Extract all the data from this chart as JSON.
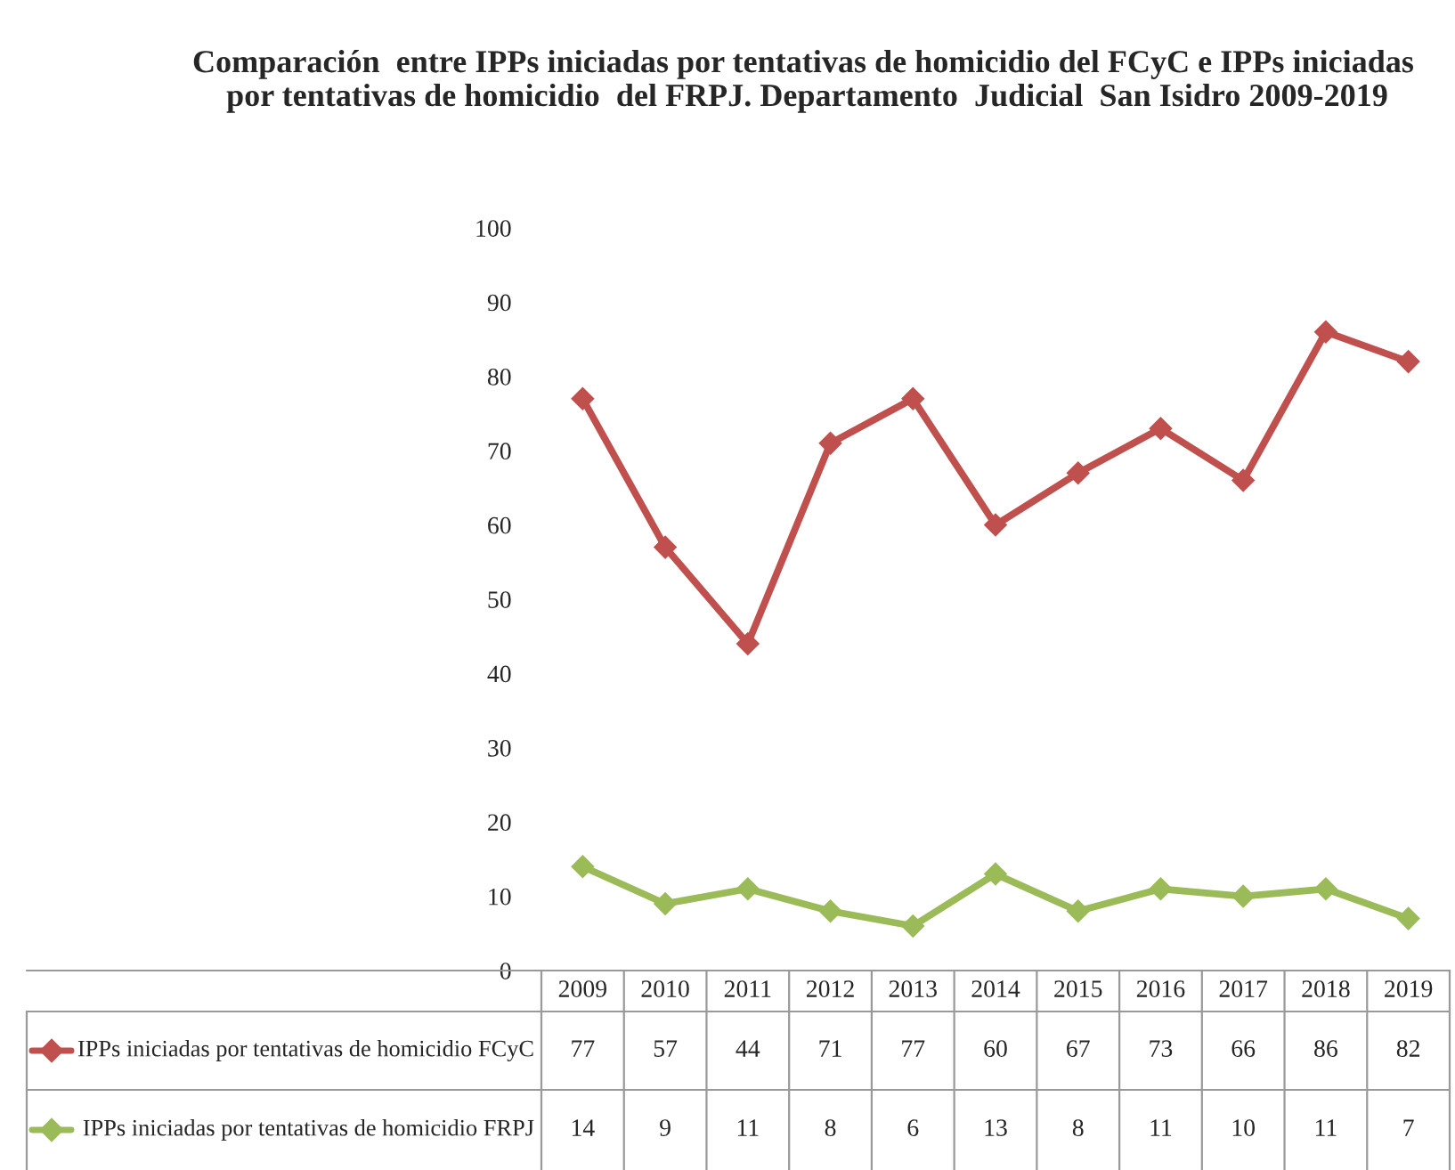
{
  "chart_data": {
    "type": "line",
    "title": "Comparación  entre IPPs iniciadas por tentativas de homicidio del FCyC e IPPs iniciadas  por tentativas de homicidio  del FRPJ. Departamento  Judicial  San Isidro 2009-2019",
    "categories": [
      "2009",
      "2010",
      "2011",
      "2012",
      "2013",
      "2014",
      "2015",
      "2016",
      "2017",
      "2018",
      "2019"
    ],
    "series": [
      {
        "name": "IPPs iniciadas por tentativas de homicidio FCyC",
        "color": "#c0504d",
        "values": [
          77,
          57,
          44,
          71,
          77,
          60,
          67,
          73,
          66,
          86,
          82
        ]
      },
      {
        "name": "IPPs iniciadas por tentativas de homicidio FRPJ",
        "color": "#9bbb59",
        "values": [
          14,
          9,
          11,
          8,
          6,
          13,
          8,
          11,
          10,
          11,
          7
        ]
      }
    ],
    "ylim": [
      0,
      100
    ],
    "yticks": [
      0,
      10,
      20,
      30,
      40,
      50,
      60,
      70,
      80,
      90,
      100
    ],
    "grid": false,
    "marker": "diamond",
    "line_style": "solid",
    "legend": "bottom",
    "data_labels": true
  }
}
